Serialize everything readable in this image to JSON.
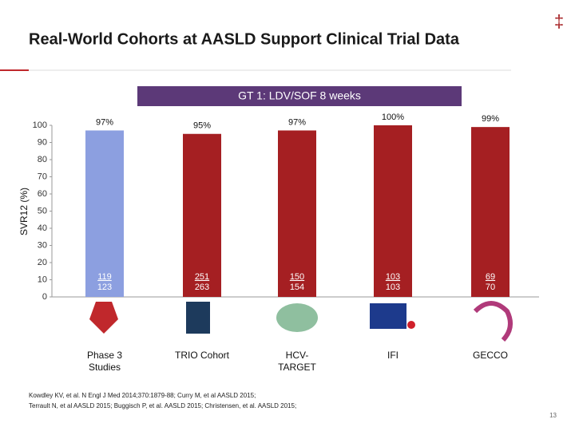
{
  "header": {
    "title": "Real-World Cohorts at AASLD Support Clinical Trial Data",
    "mark": "‡"
  },
  "chart_data": {
    "type": "bar",
    "banner": "GT 1: LDV/SOF 8 weeks",
    "y_label": "SVR12 (%)",
    "categories": [
      "Phase 3 Studies",
      "TRIO Cohort",
      "HCV-TARGET",
      "IFI",
      "GECCO"
    ],
    "values": [
      97,
      95,
      97,
      100,
      99
    ],
    "value_labels": [
      "97%",
      "95%",
      "97%",
      "100%",
      "99%"
    ],
    "colors": [
      "#8c9fe0",
      "#a51f22",
      "#a51f22",
      "#a51f22",
      "#a51f22"
    ],
    "fractions": [
      {
        "num": 119,
        "den": 123
      },
      {
        "num": 251,
        "den": 263
      },
      {
        "num": 150,
        "den": 154
      },
      {
        "num": 103,
        "den": 103
      },
      {
        "num": 69,
        "den": 70
      }
    ],
    "ylim": [
      0,
      100
    ],
    "yticks": [
      0,
      10,
      20,
      30,
      40,
      50,
      60,
      70,
      80,
      90,
      100
    ],
    "grid": false
  },
  "footer": {
    "references": [
      "Kowdley KV, et al. N Engl J Med 2014;370:1879-88; Curry M, et al AASLD 2015;",
      "Terrault N, et al AASLD 2015; Buggisch P, et al. AASLD 2015; Christensen, et al. AASLD 2015;"
    ],
    "page": 13
  }
}
